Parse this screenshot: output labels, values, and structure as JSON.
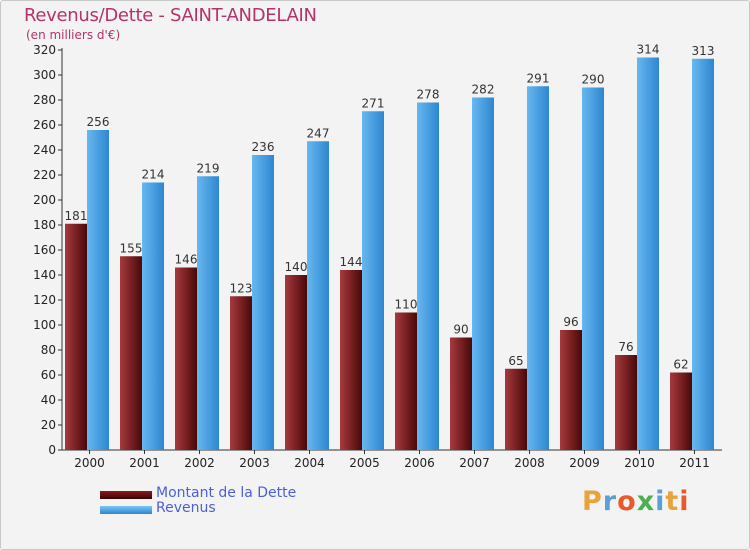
{
  "title": "Revenus/Dette - SAINT-ANDELAIN",
  "subtitle": "(en milliers d'€)",
  "chart_data": {
    "type": "bar",
    "categories": [
      "2000",
      "2001",
      "2002",
      "2003",
      "2004",
      "2005",
      "2006",
      "2007",
      "2008",
      "2009",
      "2010",
      "2011"
    ],
    "series": [
      {
        "name": "Montant de la Dette",
        "color": "#7a1518",
        "values": [
          181,
          155,
          146,
          123,
          140,
          144,
          110,
          90,
          65,
          96,
          76,
          62
        ]
      },
      {
        "name": "Revenus",
        "color": "#4aa3e6",
        "values": [
          256,
          214,
          219,
          236,
          247,
          271,
          278,
          282,
          291,
          290,
          314,
          313
        ]
      }
    ],
    "ylim": [
      0,
      320
    ],
    "ytick_step": 20,
    "grid": false,
    "legend_placement": "bottom-left"
  },
  "legend": {
    "dette_label": "Montant de la Dette",
    "revenus_label": "Revenus"
  },
  "logo": {
    "letters": [
      "P",
      "r",
      "o",
      "x",
      "i",
      "t",
      "i"
    ],
    "colors": [
      "#e8a33a",
      "#5aa0d8",
      "#e85a2a",
      "#4caf50",
      "#5aa0d8",
      "#e8a33a",
      "#e85a2a"
    ]
  }
}
